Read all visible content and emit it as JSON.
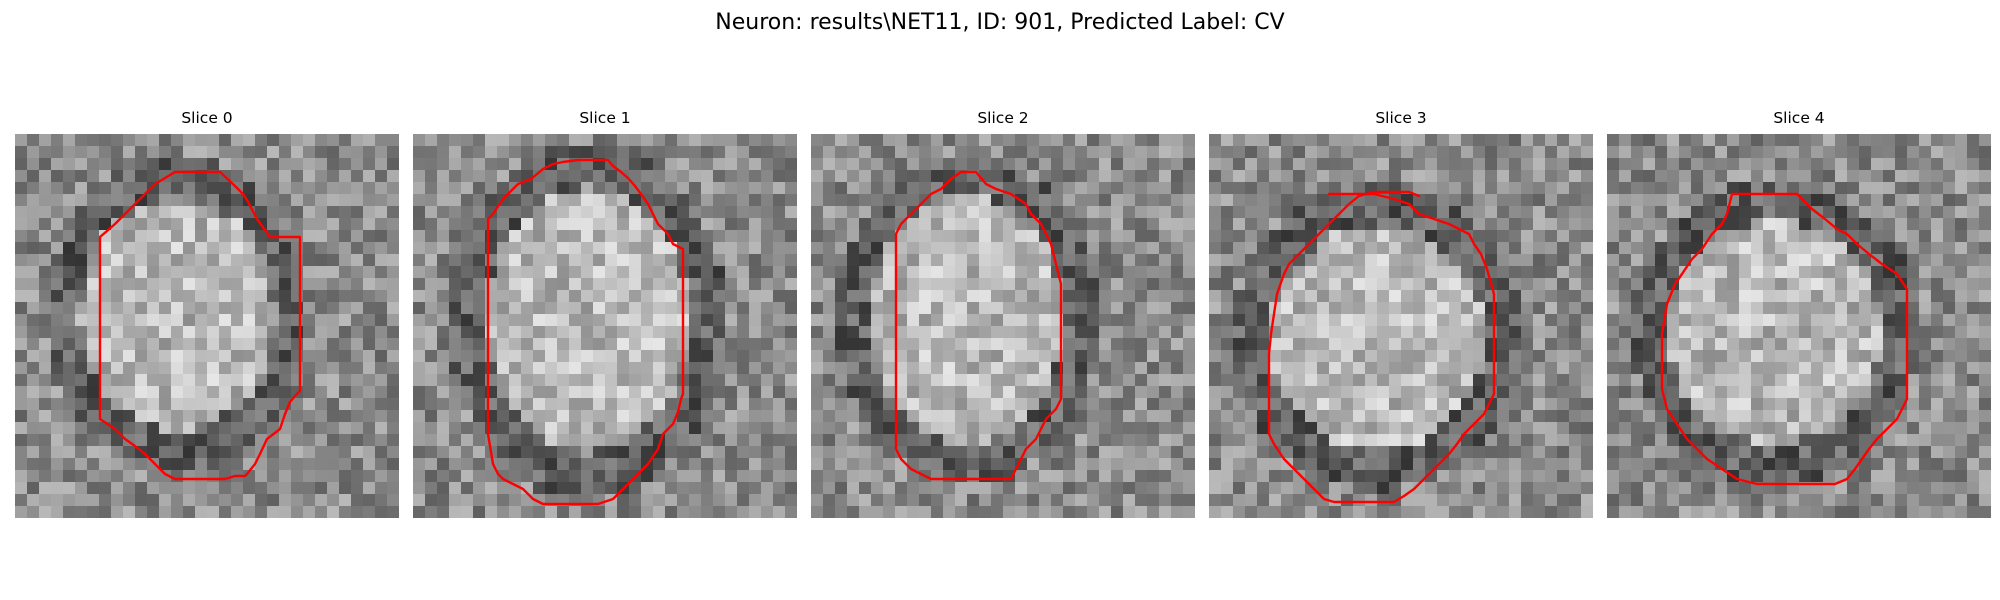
{
  "figure": {
    "title": "Neuron: results\\NET11, ID: 901, Predicted Label: CV"
  },
  "panels": [
    {
      "title": "Slice 0",
      "image": "grayscale-em-patch",
      "contour_color": "#ff0000",
      "colormap": "gray"
    },
    {
      "title": "Slice 1",
      "image": "grayscale-em-patch",
      "contour_color": "#ff0000",
      "colormap": "gray"
    },
    {
      "title": "Slice 2",
      "image": "grayscale-em-patch",
      "contour_color": "#ff0000",
      "colormap": "gray"
    },
    {
      "title": "Slice 3",
      "image": "grayscale-em-patch",
      "contour_color": "#ff0000",
      "colormap": "gray"
    },
    {
      "title": "Slice 4",
      "image": "grayscale-em-patch",
      "contour_color": "#ff0000",
      "colormap": "gray"
    }
  ]
}
